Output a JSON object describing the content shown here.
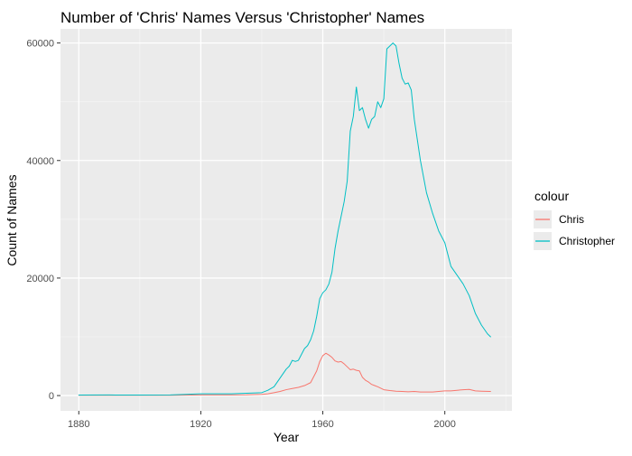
{
  "chart_data": {
    "type": "line",
    "title": "Number of 'Chris' Names Versus 'Christopher' Names",
    "xlabel": "Year",
    "ylabel": "Count of Names",
    "xlim": [
      1876.5,
      1897.8
    ],
    "ylim": [
      -2600,
      62400
    ],
    "x_ticks": [
      1880,
      1920,
      1960,
      2000
    ],
    "y_ticks": [
      0,
      20000,
      40000,
      60000
    ],
    "x_tick_labels": [
      "1880",
      "1920",
      "1960",
      "2000"
    ],
    "y_tick_labels": [
      "0",
      "20000",
      "40000",
      "60000"
    ],
    "grid": true,
    "legend": {
      "title": "colour",
      "placement": "right"
    },
    "series": [
      {
        "name": "Chris",
        "color": "#F8766D",
        "x": [
          1880,
          1890,
          1900,
          1910,
          1920,
          1930,
          1935,
          1940,
          1942,
          1944,
          1946,
          1948,
          1950,
          1952,
          1954,
          1956,
          1958,
          1959,
          1960,
          1961,
          1962,
          1963,
          1964,
          1965,
          1966,
          1967,
          1968,
          1969,
          1970,
          1971,
          1972,
          1973,
          1974,
          1975,
          1976,
          1977,
          1978,
          1980,
          1982,
          1984,
          1986,
          1988,
          1990,
          1992,
          1994,
          1996,
          1998,
          2000,
          2002,
          2004,
          2006,
          2008,
          2010,
          2012,
          2015
        ],
        "y": [
          50,
          50,
          50,
          50,
          100,
          100,
          120,
          200,
          300,
          500,
          700,
          1000,
          1200,
          1400,
          1700,
          2200,
          4200,
          5800,
          6800,
          7200,
          6900,
          6500,
          5900,
          5700,
          5800,
          5400,
          4900,
          4400,
          4500,
          4300,
          4200,
          3100,
          2600,
          2300,
          1900,
          1700,
          1500,
          1000,
          850,
          750,
          700,
          650,
          700,
          600,
          600,
          600,
          700,
          800,
          800,
          900,
          1000,
          1050,
          800,
          750,
          700
        ]
      },
      {
        "name": "Christopher",
        "color": "#00BFC4",
        "x": [
          1880,
          1890,
          1900,
          1910,
          1915,
          1920,
          1925,
          1930,
          1935,
          1940,
          1942,
          1944,
          1946,
          1948,
          1949,
          1950,
          1951,
          1952,
          1953,
          1954,
          1955,
          1956,
          1957,
          1958,
          1959,
          1960,
          1961,
          1962,
          1963,
          1964,
          1965,
          1966,
          1967,
          1968,
          1969,
          1970,
          1971,
          1972,
          1973,
          1974,
          1975,
          1976,
          1977,
          1978,
          1979,
          1980,
          1981,
          1982,
          1983,
          1984,
          1985,
          1986,
          1987,
          1988,
          1989,
          1990,
          1992,
          1994,
          1996,
          1998,
          2000,
          2002,
          2004,
          2006,
          2008,
          2010,
          2012,
          2014,
          2015
        ],
        "y": [
          80,
          100,
          80,
          100,
          200,
          300,
          300,
          300,
          400,
          500,
          900,
          1500,
          3000,
          4500,
          5000,
          6000,
          5800,
          6000,
          7000,
          8000,
          8500,
          9500,
          11000,
          13500,
          16500,
          17500,
          18000,
          19000,
          21000,
          25000,
          28000,
          30500,
          33000,
          36500,
          45000,
          47500,
          52500,
          48500,
          49000,
          47000,
          45500,
          47000,
          47500,
          50000,
          49000,
          50500,
          59000,
          59500,
          60000,
          59500,
          56500,
          54000,
          53000,
          53200,
          52000,
          47000,
          40000,
          34500,
          31000,
          28000,
          26000,
          22000,
          20500,
          19000,
          17000,
          14000,
          12000,
          10500,
          10000
        ]
      }
    ]
  }
}
